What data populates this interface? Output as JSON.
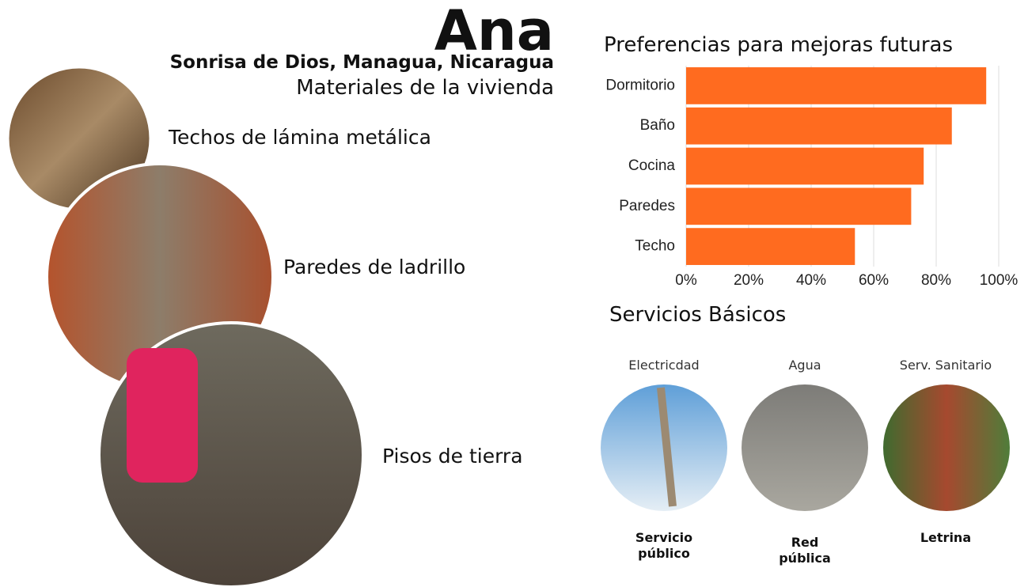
{
  "header": {
    "name": "Ana",
    "location": "Sonrisa de Dios, Managua, Nicaragua",
    "subtitle": "Materiales de la vivienda"
  },
  "materials": [
    {
      "label": "Techos de lámina metálica"
    },
    {
      "label": "Paredes de ladrillo"
    },
    {
      "label": "Pisos de tierra"
    }
  ],
  "chart_data": {
    "type": "bar",
    "orientation": "horizontal",
    "title": "Preferencias para mejoras futuras",
    "categories": [
      "Dormitorio",
      "Baño",
      "Cocina",
      "Paredes",
      "Techo"
    ],
    "values": [
      96,
      85,
      76,
      72,
      54
    ],
    "color": "#ff6b1f",
    "xlim": [
      0,
      100
    ],
    "xticks": [
      {
        "value": 0,
        "label": "0%"
      },
      {
        "value": 20,
        "label": "20%"
      },
      {
        "value": 40,
        "label": "40%"
      },
      {
        "value": 60,
        "label": "60%"
      },
      {
        "value": 80,
        "label": "80%"
      },
      {
        "value": 100,
        "label": "100%"
      }
    ],
    "grid": true
  },
  "services": {
    "title": "Servicios Básicos",
    "items": [
      {
        "name": "Electricdad",
        "value": "Servicio público"
      },
      {
        "name": "Agua",
        "value": "Red pública"
      },
      {
        "name": "Serv. Sanitario",
        "value": "Letrina"
      }
    ]
  }
}
